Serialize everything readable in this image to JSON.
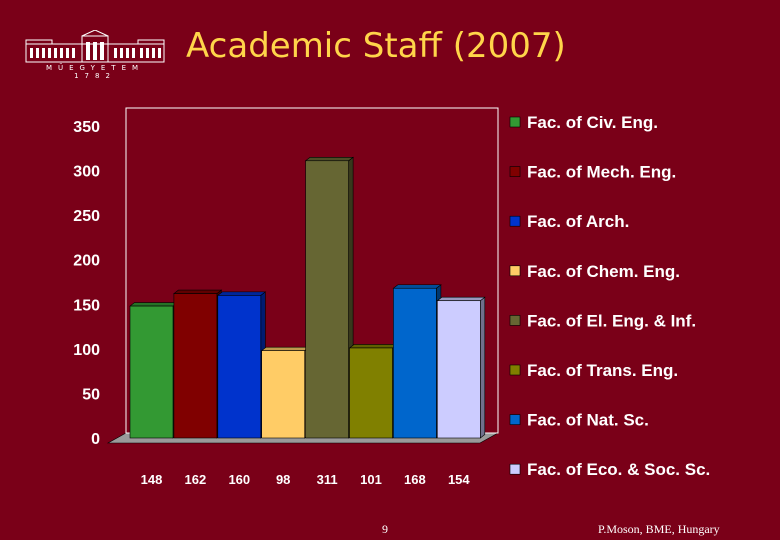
{
  "header": {
    "title": "Academic Staff (2007)",
    "logo_caption": "MŰEGYETEM 1782"
  },
  "footer": {
    "page_number": "9",
    "credit": "P.Moson, BME, Hungary"
  },
  "colors": {
    "background": "#7a0018",
    "title": "#ffd54a",
    "text": "#ffffff"
  },
  "chart_data": {
    "type": "bar",
    "title": "",
    "xlabel": "",
    "ylabel": "",
    "ylim": [
      0,
      350
    ],
    "yticks": [
      "0",
      "50",
      "100",
      "150",
      "200",
      "250",
      "300",
      "350"
    ],
    "grid": false,
    "legend_position": "right",
    "series": [
      {
        "name": "Fac. of Civ. Eng.",
        "value": 148,
        "label": "148",
        "color": "#339933"
      },
      {
        "name": "Fac. of Mech. Eng.",
        "value": 162,
        "label": "162",
        "color": "#800000"
      },
      {
        "name": "Fac. of Arch.",
        "value": 160,
        "label": "160",
        "color": "#0033cc"
      },
      {
        "name": "Fac. of Chem. Eng.",
        "value": 98,
        "label": "98",
        "color": "#ffcc66"
      },
      {
        "name": "Fac. of El. Eng. & Inf.",
        "value": 311,
        "label": "311",
        "color": "#666633"
      },
      {
        "name": "Fac. of Trans. Eng.",
        "value": 101,
        "label": "101",
        "color": "#808000"
      },
      {
        "name": "Fac. of Nat. Sc.",
        "value": 168,
        "label": "168",
        "color": "#0066cc"
      },
      {
        "name": "Fac. of Eco. & Soc. Sc.",
        "value": 154,
        "label": "154",
        "color": "#ccccff"
      }
    ]
  }
}
